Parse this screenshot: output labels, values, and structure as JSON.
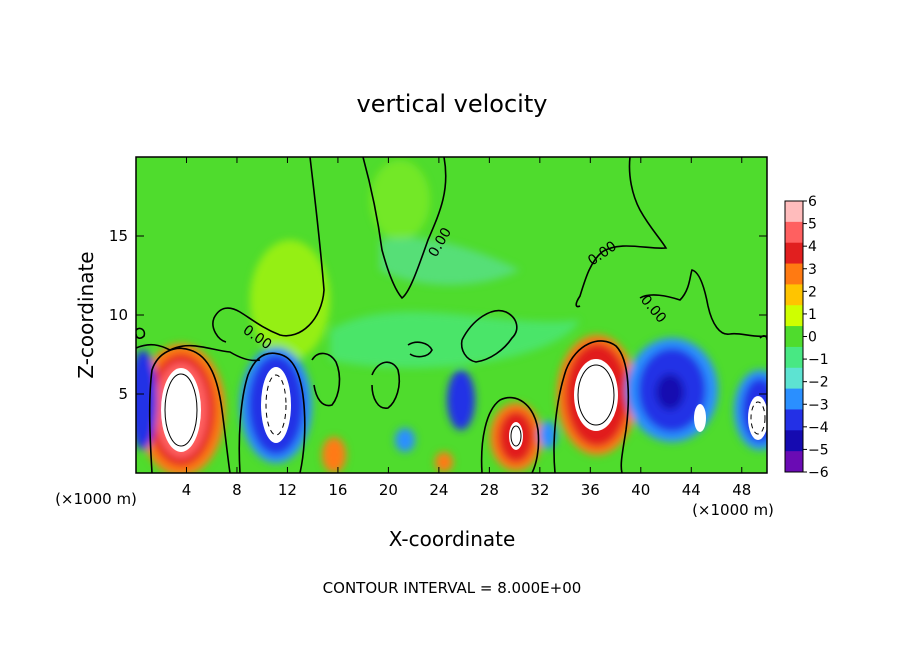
{
  "chart_data": {
    "type": "heatmap",
    "title": "vertical velocity",
    "xlabel": "X-coordinate",
    "ylabel": "Z-coordinate",
    "x_unit_left": "(×1000 m)",
    "x_unit_right": "(×1000 m)",
    "footer": "CONTOUR INTERVAL = 8.000E+00",
    "xlim": [
      0,
      50
    ],
    "ylim": [
      0,
      20
    ],
    "x_ticks": [
      4,
      8,
      12,
      16,
      20,
      24,
      28,
      32,
      36,
      40,
      44,
      48
    ],
    "y_ticks": [
      5,
      10,
      15
    ],
    "colorbar": {
      "min": -6,
      "max": 6,
      "labels": [
        "6",
        "5",
        "4",
        "3",
        "2",
        "1",
        "0",
        "−1",
        "−2",
        "−3",
        "−4",
        "−5",
        "−6"
      ],
      "colors": [
        "#ffbcbc",
        "#ff6060",
        "#e11f1f",
        "#ff7a12",
        "#ffc400",
        "#cfff00",
        "#4fdc2d",
        "#48e883",
        "#5de3d2",
        "#2a8fff",
        "#2330e6",
        "#150ab0",
        "#6a0bb4"
      ]
    },
    "contour_labels": [
      "0.00",
      "0.00",
      "0.00",
      "0.00"
    ],
    "features": [
      {
        "x": 3.2,
        "z": 4.6,
        "w": 11,
        "kind": "updraft"
      },
      {
        "x": 10.8,
        "z": 4.8,
        "w": -9,
        "kind": "downdraft"
      },
      {
        "x": 15.6,
        "z": 1.2,
        "w": 4,
        "kind": "updraft"
      },
      {
        "x": 23.8,
        "z": 0.8,
        "w": 3,
        "kind": "updraft"
      },
      {
        "x": 25.4,
        "z": 5.4,
        "w": -5,
        "kind": "downdraft"
      },
      {
        "x": 29.8,
        "z": 2.6,
        "w": 9,
        "kind": "updraft"
      },
      {
        "x": 35.8,
        "z": 5.2,
        "w": 11,
        "kind": "updraft"
      },
      {
        "x": 42.0,
        "z": 5.4,
        "w": -7,
        "kind": "downdraft"
      },
      {
        "x": 48.5,
        "z": 3.8,
        "w": -9,
        "kind": "downdraft"
      }
    ]
  }
}
